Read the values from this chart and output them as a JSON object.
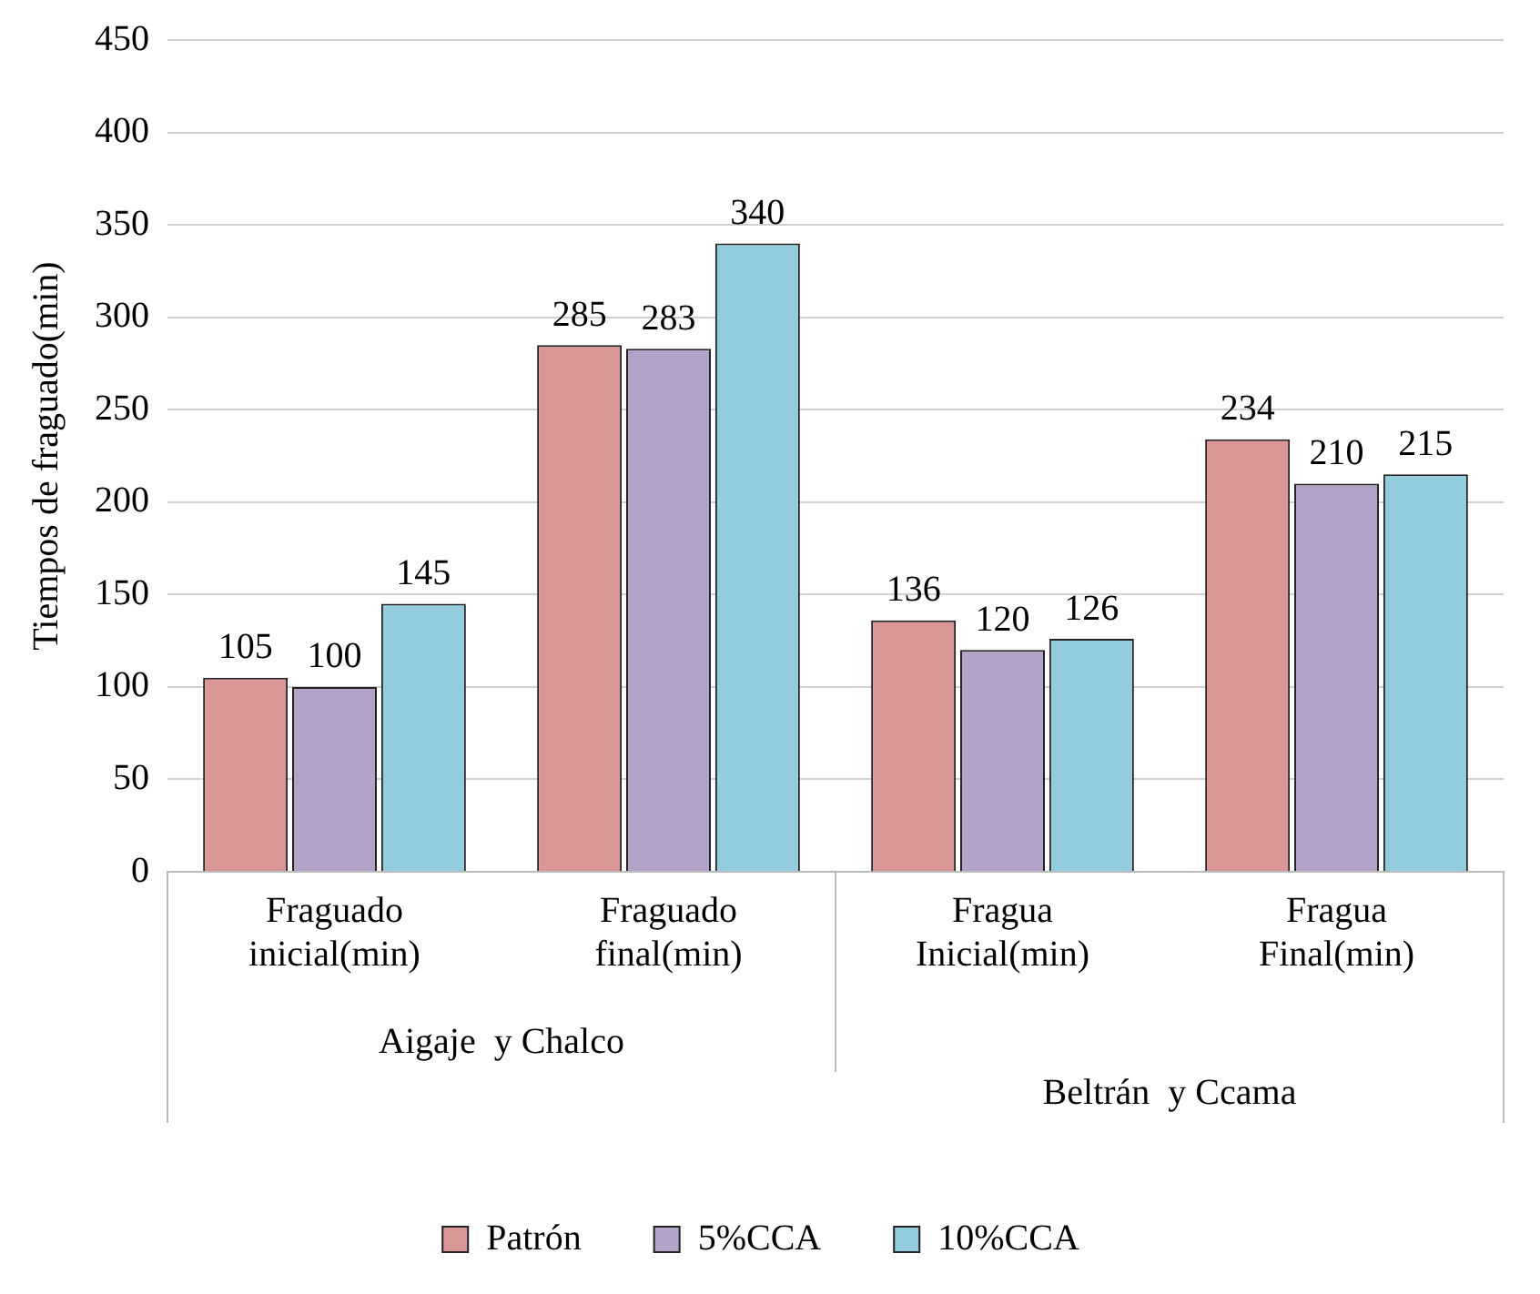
{
  "chart_data": {
    "type": "bar",
    "ylabel": "Tiempos de fraguado(min)",
    "categories": [
      "Fraguado inicial(min)",
      "Fraguado final(min)",
      "Fragua Inicial(min)",
      "Fragua Final(min)"
    ],
    "series": [
      {
        "name": "Patrón",
        "color": "#d99694",
        "values": [
          105,
          285,
          136,
          234
        ]
      },
      {
        "name": "5%CCA",
        "color": "#b3a2c7",
        "values": [
          100,
          283,
          120,
          210
        ]
      },
      {
        "name": "10%CCA",
        "color": "#93cddd",
        "values": [
          145,
          340,
          126,
          215
        ]
      }
    ],
    "ylim": [
      0,
      450
    ],
    "yticks": [
      0,
      50,
      100,
      150,
      200,
      250,
      300,
      350,
      400,
      450
    ],
    "grid": "y",
    "legend": "bottom",
    "data_labels": true,
    "annotations": [
      "Aigaje  y Chalco",
      "Beltrán  y Ccama"
    ]
  }
}
